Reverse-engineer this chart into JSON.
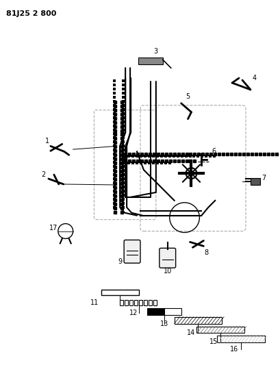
{
  "title": "81J25 2 800",
  "bg_color": "#ffffff",
  "line_color": "#000000",
  "dashed_color": "#888888",
  "fig_width": 4.09,
  "fig_height": 5.33
}
